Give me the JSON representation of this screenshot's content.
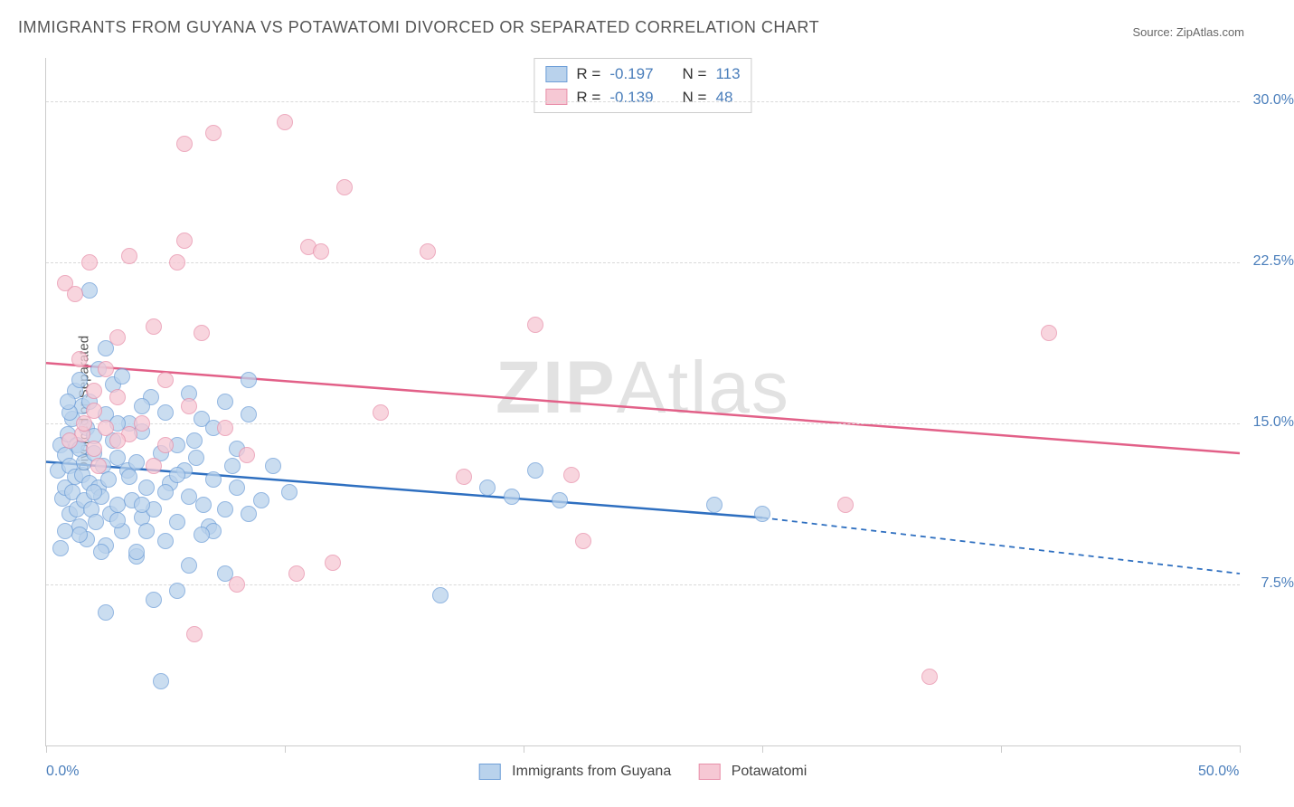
{
  "title": "IMMIGRANTS FROM GUYANA VS POTAWATOMI DIVORCED OR SEPARATED CORRELATION CHART",
  "source": "Source: ZipAtlas.com",
  "watermark_a": "ZIP",
  "watermark_b": "Atlas",
  "yaxis_title": "Divorced or Separated",
  "chart": {
    "type": "scatter",
    "xlim": [
      0,
      50
    ],
    "ylim": [
      0,
      32
    ],
    "xticks": [
      0,
      10,
      20,
      30,
      40,
      50
    ],
    "xtick_labels": {
      "0": "0.0%",
      "50": "50.0%"
    },
    "yticks": [
      7.5,
      15.0,
      22.5,
      30.0
    ],
    "ytick_labels": [
      "7.5%",
      "15.0%",
      "22.5%",
      "30.0%"
    ],
    "background_color": "#ffffff",
    "grid_color": "#d9d9d9",
    "series": [
      {
        "name": "Immigrants from Guyana",
        "fill": "#b9d2ec",
        "stroke": "#6f9fd8",
        "trend_color": "#2e6fc0",
        "trend": {
          "x1": 0,
          "y1": 13.2,
          "x2": 30,
          "y2": 10.6,
          "dash_x2": 50,
          "dash_y2": 8.0
        },
        "R": "-0.197",
        "N": "113",
        "points": [
          [
            0.5,
            12.8
          ],
          [
            0.6,
            14.0
          ],
          [
            0.7,
            11.5
          ],
          [
            0.8,
            13.5
          ],
          [
            0.8,
            12.0
          ],
          [
            0.9,
            14.5
          ],
          [
            1.0,
            10.8
          ],
          [
            1.0,
            13.0
          ],
          [
            1.1,
            15.2
          ],
          [
            1.1,
            11.8
          ],
          [
            1.2,
            12.5
          ],
          [
            1.2,
            16.5
          ],
          [
            1.3,
            11.0
          ],
          [
            1.3,
            14.0
          ],
          [
            1.4,
            13.8
          ],
          [
            1.4,
            10.2
          ],
          [
            1.5,
            12.6
          ],
          [
            1.5,
            15.8
          ],
          [
            1.6,
            11.4
          ],
          [
            1.6,
            13.2
          ],
          [
            1.7,
            14.8
          ],
          [
            1.7,
            9.6
          ],
          [
            1.8,
            12.2
          ],
          [
            1.8,
            16.0
          ],
          [
            1.9,
            11.0
          ],
          [
            2.0,
            13.6
          ],
          [
            2.0,
            14.4
          ],
          [
            2.1,
            10.4
          ],
          [
            2.2,
            12.0
          ],
          [
            2.2,
            17.5
          ],
          [
            2.3,
            11.6
          ],
          [
            2.4,
            13.0
          ],
          [
            2.5,
            15.4
          ],
          [
            2.5,
            9.3
          ],
          [
            2.6,
            12.4
          ],
          [
            2.7,
            10.8
          ],
          [
            2.8,
            14.2
          ],
          [
            2.8,
            16.8
          ],
          [
            3.0,
            11.2
          ],
          [
            3.0,
            13.4
          ],
          [
            3.2,
            17.2
          ],
          [
            3.2,
            10.0
          ],
          [
            3.4,
            12.8
          ],
          [
            3.5,
            15.0
          ],
          [
            3.6,
            11.4
          ],
          [
            3.8,
            13.2
          ],
          [
            3.8,
            8.8
          ],
          [
            4.0,
            10.6
          ],
          [
            4.0,
            14.6
          ],
          [
            4.2,
            12.0
          ],
          [
            4.4,
            16.2
          ],
          [
            4.5,
            11.0
          ],
          [
            4.8,
            13.6
          ],
          [
            5.0,
            15.5
          ],
          [
            5.0,
            9.5
          ],
          [
            5.2,
            12.2
          ],
          [
            5.5,
            10.4
          ],
          [
            5.5,
            14.0
          ],
          [
            5.8,
            12.8
          ],
          [
            6.0,
            16.4
          ],
          [
            6.0,
            11.6
          ],
          [
            6.3,
            13.4
          ],
          [
            6.5,
            15.2
          ],
          [
            6.8,
            10.2
          ],
          [
            7.0,
            12.4
          ],
          [
            7.0,
            14.8
          ],
          [
            7.5,
            11.0
          ],
          [
            7.5,
            16.0
          ],
          [
            8.0,
            12.0
          ],
          [
            8.0,
            13.8
          ],
          [
            8.5,
            10.8
          ],
          [
            8.5,
            15.4
          ],
          [
            9.0,
            11.4
          ],
          [
            9.5,
            13.0
          ],
          [
            1.8,
            21.2
          ],
          [
            2.5,
            6.2
          ],
          [
            4.5,
            6.8
          ],
          [
            5.5,
            7.2
          ],
          [
            7.0,
            10.0
          ],
          [
            4.8,
            3.0
          ],
          [
            3.8,
            9.0
          ],
          [
            16.5,
            7.0
          ],
          [
            18.5,
            12.0
          ],
          [
            19.5,
            11.6
          ],
          [
            20.5,
            12.8
          ],
          [
            21.5,
            11.4
          ],
          [
            8.5,
            17.0
          ],
          [
            2.5,
            18.5
          ],
          [
            3.0,
            10.5
          ],
          [
            4.0,
            11.2
          ],
          [
            3.5,
            12.5
          ],
          [
            2.0,
            11.8
          ],
          [
            1.4,
            9.8
          ],
          [
            0.8,
            10.0
          ],
          [
            28.0,
            11.2
          ],
          [
            30.0,
            10.8
          ],
          [
            7.5,
            8.0
          ],
          [
            6.0,
            8.4
          ],
          [
            1.0,
            15.5
          ],
          [
            6.5,
            9.8
          ],
          [
            5.0,
            11.8
          ],
          [
            4.0,
            15.8
          ],
          [
            3.0,
            15.0
          ],
          [
            7.8,
            13.0
          ],
          [
            10.2,
            11.8
          ],
          [
            6.2,
            14.2
          ],
          [
            2.3,
            9.0
          ],
          [
            1.4,
            17.0
          ],
          [
            0.6,
            9.2
          ],
          [
            0.9,
            16.0
          ],
          [
            5.5,
            12.6
          ],
          [
            6.6,
            11.2
          ],
          [
            4.2,
            10.0
          ]
        ]
      },
      {
        "name": "Potawatomi",
        "fill": "#f6c8d4",
        "stroke": "#e890aa",
        "trend_color": "#e26088",
        "trend": {
          "x1": 0,
          "y1": 17.8,
          "x2": 50,
          "y2": 13.6
        },
        "R": "-0.139",
        "N": "48",
        "points": [
          [
            0.8,
            21.5
          ],
          [
            1.2,
            21.0
          ],
          [
            1.4,
            18.0
          ],
          [
            1.5,
            14.5
          ],
          [
            1.8,
            22.5
          ],
          [
            2.0,
            13.8
          ],
          [
            2.0,
            15.6
          ],
          [
            2.2,
            13.0
          ],
          [
            2.5,
            14.8
          ],
          [
            2.5,
            17.5
          ],
          [
            3.0,
            16.2
          ],
          [
            3.0,
            19.0
          ],
          [
            3.5,
            22.8
          ],
          [
            3.5,
            14.5
          ],
          [
            4.0,
            15.0
          ],
          [
            4.5,
            19.5
          ],
          [
            5.0,
            14.0
          ],
          [
            5.0,
            17.0
          ],
          [
            5.5,
            22.5
          ],
          [
            5.8,
            23.5
          ],
          [
            5.8,
            28.0
          ],
          [
            6.5,
            19.2
          ],
          [
            7.0,
            28.5
          ],
          [
            8.4,
            13.5
          ],
          [
            10.0,
            29.0
          ],
          [
            10.5,
            8.0
          ],
          [
            11.0,
            23.2
          ],
          [
            11.5,
            23.0
          ],
          [
            12.0,
            8.5
          ],
          [
            12.5,
            26.0
          ],
          [
            14.0,
            15.5
          ],
          [
            16.0,
            23.0
          ],
          [
            17.5,
            12.5
          ],
          [
            20.5,
            19.6
          ],
          [
            22.0,
            12.6
          ],
          [
            22.5,
            9.5
          ],
          [
            33.5,
            11.2
          ],
          [
            37.0,
            3.2
          ],
          [
            42.0,
            19.2
          ],
          [
            6.0,
            15.8
          ],
          [
            4.5,
            13.0
          ],
          [
            3.0,
            14.2
          ],
          [
            2.0,
            16.5
          ],
          [
            1.6,
            15.0
          ],
          [
            1.0,
            14.2
          ],
          [
            8.0,
            7.5
          ],
          [
            6.2,
            5.2
          ],
          [
            7.5,
            14.8
          ]
        ]
      }
    ]
  },
  "legend_top": {
    "r_label": "R =",
    "n_label": "N ="
  },
  "colors": {
    "axis_value": "#4a7ebb",
    "text": "#555555"
  }
}
